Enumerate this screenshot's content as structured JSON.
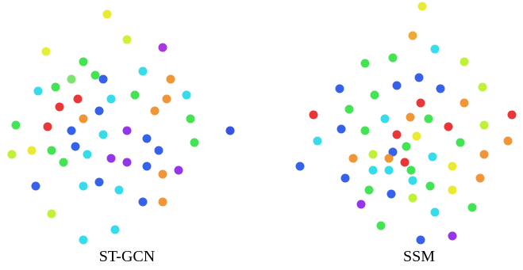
{
  "chart_data": [
    {
      "type": "scatter",
      "title": "ST-GCN",
      "xlim": [
        0,
        320
      ],
      "ylim": [
        310,
        0
      ],
      "x": [
        135,
        160,
        58,
        205,
        120,
        105,
        90,
        180,
        215,
        48,
        70,
        20,
        60,
        75,
        98,
        130,
        125,
        170,
        140,
        195,
        210,
        235,
        240,
        290,
        245,
        90,
        105,
        130,
        160,
        185,
        200,
        15,
        40,
        65,
        95,
        110,
        140,
        160,
        185,
        225,
        205,
        80,
        45,
        105,
        125,
        150,
        180,
        205,
        65,
        145,
        105
      ],
      "y": [
        18,
        50,
        65,
        60,
        95,
        78,
        100,
        90,
        100,
        115,
        110,
        158,
        160,
        135,
        125,
        100,
        140,
        120,
        125,
        140,
        125,
        120,
        150,
        165,
        180,
        165,
        150,
        170,
        165,
        175,
        190,
        195,
        190,
        190,
        185,
        195,
        200,
        205,
        210,
        215,
        220,
        205,
        235,
        235,
        230,
        240,
        255,
        255,
        270,
        290,
        303
      ],
      "colors": [
        "#e8e81c",
        "#c8f020",
        "#e0f020",
        "#a020e0",
        "#30e040",
        "#30e040",
        "#70e060",
        "#20d8e8",
        "#f08a20",
        "#20d8e8",
        "#30e040",
        "#30e040",
        "#e82020",
        "#e82020",
        "#e82020",
        "#2050e8",
        "#2050e8",
        "#30e040",
        "#20d8e8",
        "#f08a20",
        "#f08a20",
        "#20d8e8",
        "#30e040",
        "#2040e0",
        "#30e040",
        "#2050e8",
        "#f08a20",
        "#20d8e8",
        "#8a20e8",
        "#2050e8",
        "#2050e8",
        "#b8f020",
        "#e8e81c",
        "#30e040",
        "#2050e8",
        "#20d8e8",
        "#8a20e8",
        "#8a20e8",
        "#2050e8",
        "#8a20e8",
        "#f08a20",
        "#30e040",
        "#2050e8",
        "#20d8e8",
        "#2050e8",
        "#20d8e8",
        "#2050e8",
        "#f08a20",
        "#b8f020",
        "#20d8e8",
        "#20d8e8"
      ]
    },
    {
      "type": "scatter",
      "title": "SSM",
      "xlim": [
        0,
        320
      ],
      "ylim": [
        310,
        0
      ],
      "x": [
        192,
        180,
        208,
        155,
        245,
        120,
        188,
        88,
        160,
        215,
        268,
        132,
        190,
        245,
        55,
        100,
        145,
        177,
        200,
        225,
        270,
        305,
        90,
        120,
        160,
        185,
        240,
        60,
        155,
        172,
        130,
        150,
        170,
        105,
        205,
        270,
        300,
        38,
        130,
        150,
        178,
        230,
        95,
        265,
        180,
        202,
        230,
        125,
        153,
        115,
        180,
        255,
        208,
        140,
        230,
        190
      ],
      "y": [
        8,
        45,
        62,
        73,
        78,
        80,
        98,
        112,
        108,
        112,
        110,
        120,
        130,
        130,
        145,
        138,
        150,
        148,
        150,
        160,
        158,
        145,
        163,
        165,
        170,
        172,
        180,
        178,
        192,
        185,
        195,
        200,
        205,
        200,
        198,
        195,
        178,
        210,
        215,
        215,
        215,
        210,
        225,
        225,
        228,
        235,
        240,
        240,
        245,
        258,
        250,
        262,
        268,
        285,
        298,
        303
      ],
      "colors": [
        "#e8e81c",
        "#f0a020",
        "#20d8e8",
        "#30e040",
        "#b8f020",
        "#30e040",
        "#2050e8",
        "#2050e8",
        "#2050e8",
        "#2050e8",
        "#b8f020",
        "#30e040",
        "#e82020",
        "#f08a20",
        "#e82020",
        "#30e040",
        "#20d8e8",
        "#f08a20",
        "#30e040",
        "#e82020",
        "#b8f020",
        "#e82020",
        "#2050e8",
        "#30e040",
        "#e82020",
        "#e8e81c",
        "#30e040",
        "#20d8e8",
        "#2050e8",
        "#30e040",
        "#b8f020",
        "#f08a20",
        "#e82020",
        "#f08a20",
        "#20d8e8",
        "#f08a20",
        "#f08a20",
        "#2050e8",
        "#20d8e8",
        "#20d8e8",
        "#30e040",
        "#e8e81c",
        "#2050e8",
        "#f08a20",
        "#20d8e8",
        "#30e040",
        "#e8e81c",
        "#30e040",
        "#2050e8",
        "#8a20e8",
        "#b8f020",
        "#30e040",
        "#20d8e8",
        "#30e040",
        "#8a20e8",
        "#2050e8"
      ]
    }
  ]
}
